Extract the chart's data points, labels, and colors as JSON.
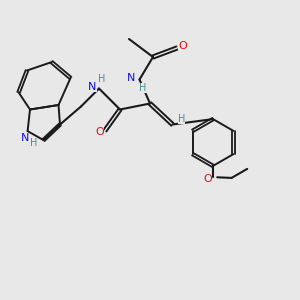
{
  "bg_color": "#e8e8e8",
  "bond_color": "#1a1a1a",
  "N_color": "#1010dd",
  "O_color": "#dd1010",
  "H_color": "#4a8f8f",
  "figsize": [
    3.0,
    3.0
  ],
  "dpi": 100,
  "xlim": [
    0,
    10
  ],
  "ylim": [
    0,
    10
  ]
}
